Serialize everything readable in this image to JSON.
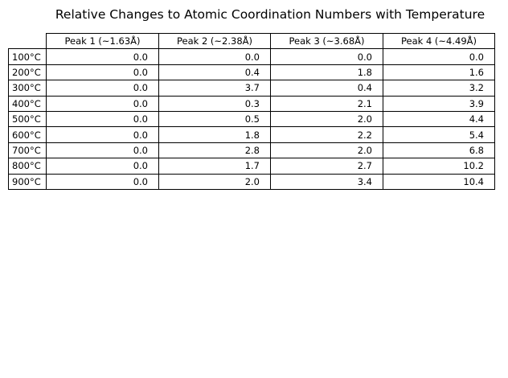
{
  "chart_data": {
    "type": "table",
    "title": "Relative Changes to Atomic Coordination Numbers with Temperature",
    "columns": [
      "Peak 1 (~1.63Å)",
      "Peak 2 (~2.38Å)",
      "Peak 3 (~3.68Å)",
      "Peak 4 (~4.49Å)"
    ],
    "rows": [
      {
        "label": "100°C",
        "values": [
          "0.0",
          "0.0",
          "0.0",
          "0.0"
        ]
      },
      {
        "label": "200°C",
        "values": [
          "0.0",
          "0.4",
          "1.8",
          "1.6"
        ]
      },
      {
        "label": "300°C",
        "values": [
          "0.0",
          "3.7",
          "0.4",
          "3.2"
        ]
      },
      {
        "label": "400°C",
        "values": [
          "0.0",
          "0.3",
          "2.1",
          "3.9"
        ]
      },
      {
        "label": "500°C",
        "values": [
          "0.0",
          "0.5",
          "2.0",
          "4.4"
        ]
      },
      {
        "label": "600°C",
        "values": [
          "0.0",
          "1.8",
          "2.2",
          "5.4"
        ]
      },
      {
        "label": "700°C",
        "values": [
          "0.0",
          "2.8",
          "2.0",
          "6.8"
        ]
      },
      {
        "label": "800°C",
        "values": [
          "0.0",
          "1.7",
          "2.7",
          "10.2"
        ]
      },
      {
        "label": "900°C",
        "values": [
          "0.0",
          "2.0",
          "3.4",
          "10.4"
        ]
      }
    ]
  }
}
